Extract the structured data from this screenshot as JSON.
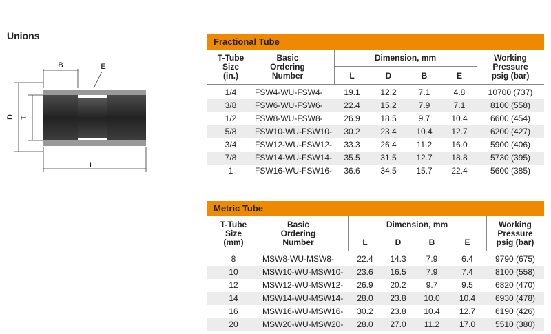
{
  "header": {
    "title": "Unions"
  },
  "diagram": {
    "labels": {
      "b": "B",
      "e": "E",
      "d": "D",
      "t": "T",
      "l": "L"
    }
  },
  "tables": [
    {
      "title": "Fractional Tube",
      "headers": {
        "size": [
          "T-Tube",
          "Size",
          "(in.)"
        ],
        "ordering": [
          "Basic",
          "Ordering",
          "Number"
        ],
        "dimension": "Dimension, mm",
        "dims": [
          "L",
          "D",
          "B",
          "E"
        ],
        "pressure": [
          "Working",
          "Pressure",
          "psig (bar)"
        ]
      },
      "rows": [
        [
          "1/4",
          "FSW4-WU-FSW4-",
          "19.1",
          "12.2",
          "7.1",
          "4.8",
          "10700 (737)"
        ],
        [
          "3/8",
          "FSW6-WU-FSW6-",
          "22.4",
          "15.2",
          "7.9",
          "7.1",
          "8100 (558)"
        ],
        [
          "1/2",
          "FSW8-WU-FSW8-",
          "26.9",
          "18.5",
          "9.7",
          "10.4",
          "6600 (454)"
        ],
        [
          "5/8",
          "FSW10-WU-FSW10-",
          "30.2",
          "23.4",
          "10.4",
          "12.7",
          "6200 (427)"
        ],
        [
          "3/4",
          "FSW12-WU-FSW12-",
          "33.3",
          "26.4",
          "11.2",
          "16.0",
          "5900 (406)"
        ],
        [
          "7/8",
          "FSW14-WU-FSW14-",
          "35.5",
          "31.5",
          "12.7",
          "18.8",
          "5730 (395)"
        ],
        [
          "1",
          "FSW16-WU-FSW16-",
          "36.6",
          "34.5",
          "15.7",
          "22.4",
          "5600 (385)"
        ]
      ]
    },
    {
      "title": "Metric Tube",
      "headers": {
        "size": [
          "T-Tube",
          "Size",
          "(mm)"
        ],
        "ordering": [
          "Basic",
          "Ordering",
          "Number"
        ],
        "dimension": "Dimension, mm",
        "dims": [
          "L",
          "D",
          "B",
          "E"
        ],
        "pressure": [
          "Working",
          "Pressure",
          "psig (bar)"
        ]
      },
      "rows": [
        [
          "8",
          "MSW8-WU-MSW8-",
          "22.4",
          "14.3",
          "7.9",
          "6.4",
          "9790 (675)"
        ],
        [
          "10",
          "MSW10-WU-MSW10-",
          "23.6",
          "16.5",
          "7.9",
          "7.4",
          "8100 (558)"
        ],
        [
          "12",
          "MSW12-WU-MSW12-",
          "26.9",
          "20.2",
          "9.7",
          "9.5",
          "6820 (470)"
        ],
        [
          "14",
          "MSW14-WU-MSW14-",
          "28.0",
          "23.8",
          "10.0",
          "10.4",
          "6930 (478)"
        ],
        [
          "16",
          "MSW16-WU-MSW16-",
          "30.2",
          "23.8",
          "10.4",
          "12.7",
          "6190 (426)"
        ],
        [
          "20",
          "MSW20-WU-MSW20-",
          "28.0",
          "27.0",
          "11.2",
          "17.0",
          "5510 (380)"
        ]
      ]
    }
  ]
}
